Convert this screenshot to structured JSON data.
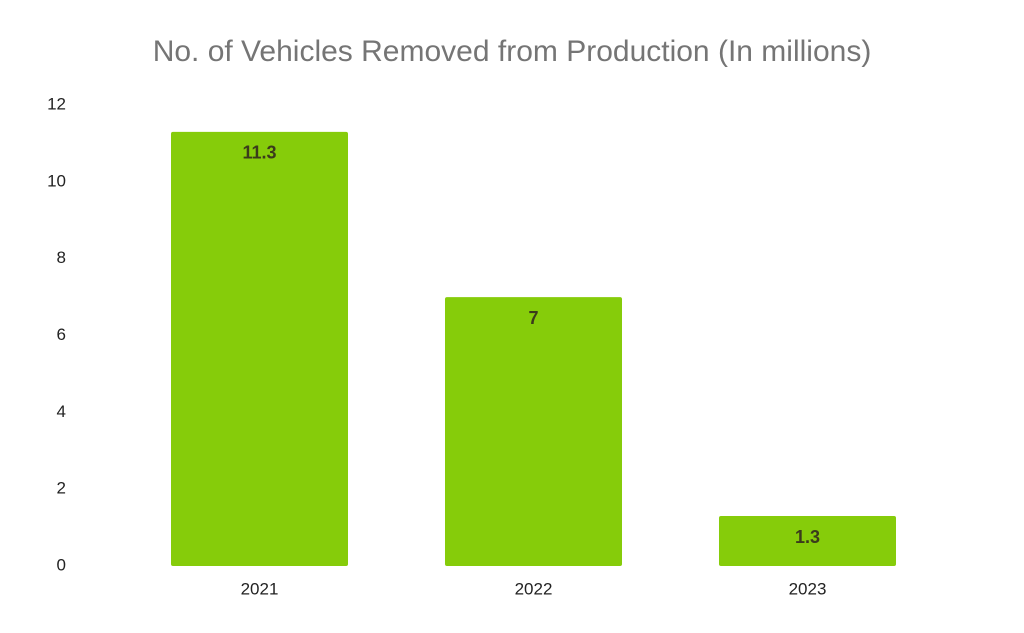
{
  "chart_data": {
    "type": "bar",
    "title": "No. of Vehicles Removed from Production (In millions)",
    "categories": [
      "2021",
      "2022",
      "2023"
    ],
    "values": [
      11.3,
      7,
      1.3
    ],
    "color": "#86cc0a",
    "ylim": [
      0,
      12
    ],
    "yticks": [
      0,
      2,
      4,
      6,
      8,
      10,
      12
    ],
    "grid": false
  }
}
